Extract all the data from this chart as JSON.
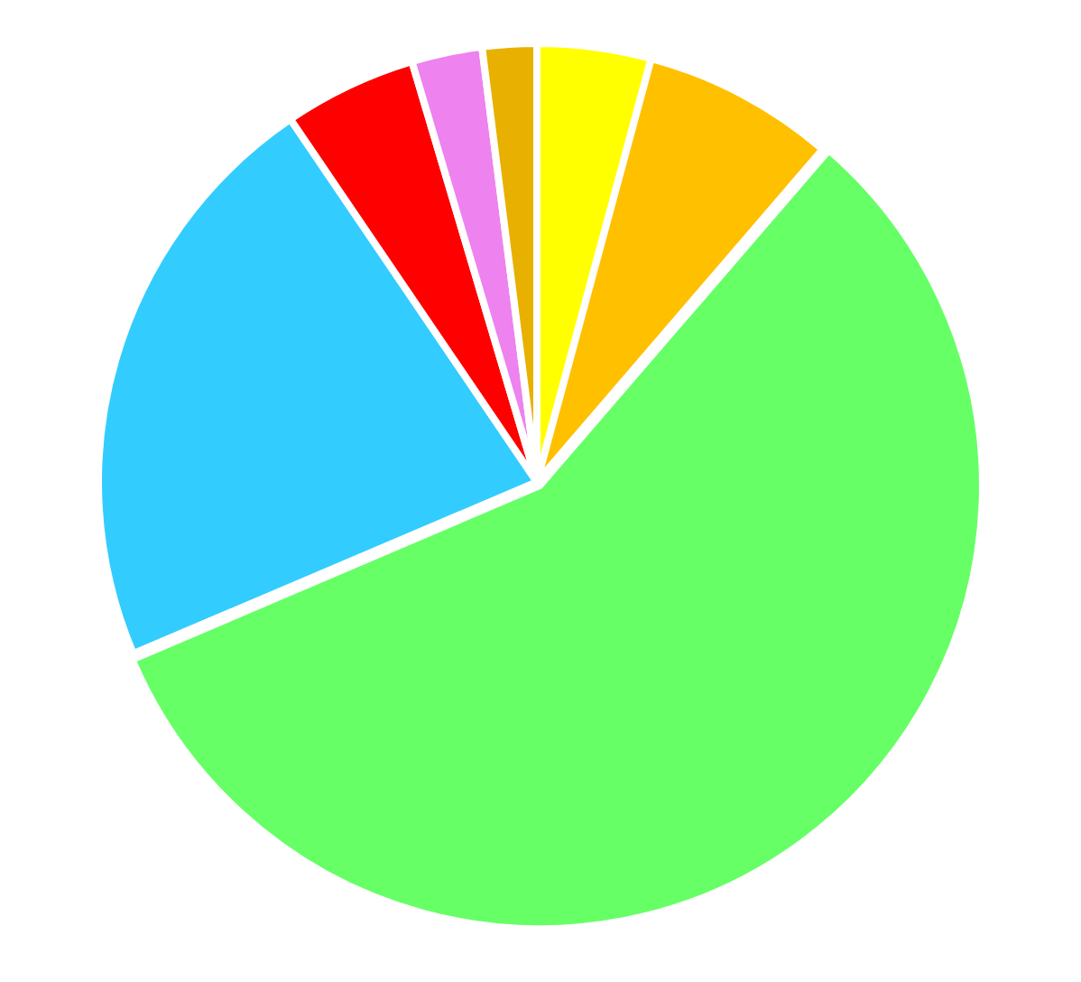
{
  "chart_data": {
    "type": "pie",
    "categories": [
      null,
      null,
      null,
      null,
      null,
      null,
      null
    ],
    "values": [
      4.2,
      7.1,
      57.3,
      21.9,
      4.9,
      2.6,
      2.0
    ],
    "colors": [
      "#ffff00",
      "#ffc000",
      "#66ff66",
      "#33ccff",
      "#ff0000",
      "#ee82ee",
      "#e8b000"
    ]
  }
}
